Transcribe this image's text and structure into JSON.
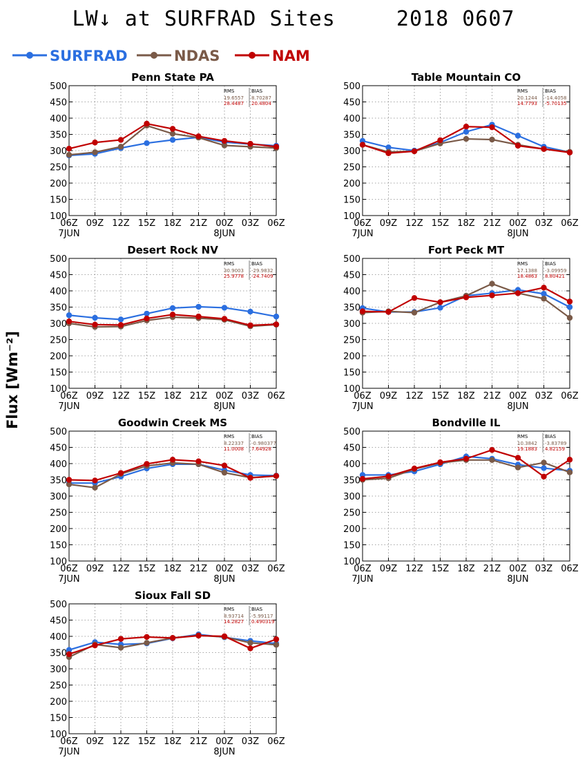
{
  "title_left": "LW↓ at SURFRAD Sites",
  "title_right": "2018 0607",
  "y_axis_label": "Flux [Wm⁻²]",
  "legend": [
    {
      "name": "SURFRAD",
      "color": "#2b6fe0"
    },
    {
      "name": "NDAS",
      "color": "#7a5a48"
    },
    {
      "name": "NAM",
      "color": "#c00000"
    }
  ],
  "stats_headers": {
    "rms": "RMS",
    "bias": "BIAS"
  },
  "chart_data": [
    {
      "type": "line",
      "title": "Penn State PA",
      "x": [
        "06Z",
        "09Z",
        "12Z",
        "15Z",
        "18Z",
        "21Z",
        "00Z",
        "03Z",
        "06Z"
      ],
      "date_labels": [
        "7JUN",
        "8JUN"
      ],
      "ylim": [
        100,
        500
      ],
      "yticks": [
        100,
        150,
        200,
        250,
        300,
        350,
        400,
        450,
        500
      ],
      "grid": true,
      "stats": [
        [
          "19.6557",
          "8.70287"
        ],
        [
          "28.4487",
          "20.4804"
        ]
      ],
      "series": [
        {
          "name": "SURFRAD",
          "values": [
            285,
            290,
            308,
            323,
            333,
            341,
            326,
            320,
            315
          ]
        },
        {
          "name": "NDAS",
          "values": [
            287,
            295,
            312,
            377,
            352,
            340,
            316,
            312,
            308
          ]
        },
        {
          "name": "NAM",
          "values": [
            306,
            325,
            333,
            383,
            367,
            344,
            330,
            321,
            312
          ]
        }
      ]
    },
    {
      "type": "line",
      "title": "Table Mountain CO",
      "x": [
        "06Z",
        "09Z",
        "12Z",
        "15Z",
        "18Z",
        "21Z",
        "00Z",
        "03Z",
        "06Z"
      ],
      "date_labels": [
        "7JUN",
        "8JUN"
      ],
      "ylim": [
        100,
        500
      ],
      "yticks": [
        100,
        150,
        200,
        250,
        300,
        350,
        400,
        450,
        500
      ],
      "grid": true,
      "stats": [
        [
          "20.1244",
          "-14.4058"
        ],
        [
          "14.7793",
          "-5.70135"
        ]
      ],
      "series": [
        {
          "name": "SURFRAD",
          "values": [
            330,
            310,
            300,
            325,
            358,
            380,
            346,
            312,
            295
          ]
        },
        {
          "name": "NDAS",
          "values": [
            318,
            296,
            298,
            322,
            336,
            334,
            318,
            305,
            296
          ]
        },
        {
          "name": "NAM",
          "values": [
            318,
            292,
            298,
            332,
            374,
            372,
            315,
            305,
            294
          ]
        }
      ]
    },
    {
      "type": "line",
      "title": "Desert Rock NV",
      "x": [
        "06Z",
        "09Z",
        "12Z",
        "15Z",
        "18Z",
        "21Z",
        "00Z",
        "03Z",
        "06Z"
      ],
      "date_labels": [
        "7JUN",
        "8JUN"
      ],
      "ylim": [
        100,
        500
      ],
      "yticks": [
        100,
        150,
        200,
        250,
        300,
        350,
        400,
        450,
        500
      ],
      "grid": true,
      "stats": [
        [
          "30.9003",
          "-29.9832"
        ],
        [
          "25.9778",
          "-24.7409"
        ]
      ],
      "series": [
        {
          "name": "SURFRAD",
          "values": [
            325,
            317,
            312,
            330,
            347,
            351,
            348,
            336,
            321
          ]
        },
        {
          "name": "NDAS",
          "values": [
            300,
            289,
            290,
            309,
            319,
            316,
            311,
            291,
            296
          ]
        },
        {
          "name": "NAM",
          "values": [
            306,
            296,
            295,
            315,
            327,
            321,
            314,
            294,
            297
          ]
        }
      ]
    },
    {
      "type": "line",
      "title": "Fort Peck MT",
      "x": [
        "06Z",
        "09Z",
        "12Z",
        "15Z",
        "18Z",
        "21Z",
        "00Z",
        "03Z",
        "06Z"
      ],
      "date_labels": [
        "7JUN",
        "8JUN"
      ],
      "ylim": [
        100,
        500
      ],
      "yticks": [
        100,
        150,
        200,
        250,
        300,
        350,
        400,
        450,
        500
      ],
      "grid": true,
      "stats": [
        [
          "17.1388",
          "-3.09959"
        ],
        [
          "18.4863",
          "8.80421"
        ]
      ],
      "series": [
        {
          "name": "SURFRAD",
          "values": [
            347,
            335,
            335,
            348,
            385,
            393,
            403,
            391,
            350
          ]
        },
        {
          "name": "NDAS",
          "values": [
            333,
            337,
            333,
            365,
            385,
            422,
            393,
            376,
            317
          ]
        },
        {
          "name": "NAM",
          "values": [
            337,
            335,
            378,
            365,
            380,
            386,
            393,
            410,
            367
          ]
        }
      ]
    },
    {
      "type": "line",
      "title": "Goodwin Creek MS",
      "x": [
        "06Z",
        "09Z",
        "12Z",
        "15Z",
        "18Z",
        "21Z",
        "00Z",
        "03Z",
        "06Z"
      ],
      "date_labels": [
        "7JUN",
        "8JUN"
      ],
      "ylim": [
        100,
        500
      ],
      "yticks": [
        100,
        150,
        200,
        250,
        300,
        350,
        400,
        450,
        500
      ],
      "grid": true,
      "stats": [
        [
          "8.22337",
          "-0.980377"
        ],
        [
          "11.0008",
          "7.64928"
        ]
      ],
      "series": [
        {
          "name": "SURFRAD",
          "values": [
            340,
            340,
            360,
            385,
            398,
            398,
            380,
            365,
            363
          ]
        },
        {
          "name": "NDAS",
          "values": [
            336,
            326,
            368,
            393,
            402,
            398,
            372,
            357,
            362
          ]
        },
        {
          "name": "NAM",
          "values": [
            350,
            348,
            371,
            399,
            412,
            407,
            394,
            356,
            362
          ]
        }
      ]
    },
    {
      "type": "line",
      "title": "Bondville IL",
      "x": [
        "06Z",
        "09Z",
        "12Z",
        "15Z",
        "18Z",
        "21Z",
        "00Z",
        "03Z",
        "06Z"
      ],
      "date_labels": [
        "7JUN",
        "8JUN"
      ],
      "ylim": [
        100,
        500
      ],
      "yticks": [
        100,
        150,
        200,
        250,
        300,
        350,
        400,
        450,
        500
      ],
      "grid": true,
      "stats": [
        [
          "10.3842",
          "-3.83789"
        ],
        [
          "19.1883",
          "4.82159"
        ]
      ],
      "series": [
        {
          "name": "SURFRAD",
          "values": [
            365,
            365,
            376,
            398,
            422,
            415,
            397,
            386,
            378
          ]
        },
        {
          "name": "NDAS",
          "values": [
            350,
            355,
            383,
            402,
            411,
            411,
            388,
            403,
            373
          ]
        },
        {
          "name": "NAM",
          "values": [
            353,
            361,
            385,
            404,
            415,
            442,
            418,
            360,
            412
          ]
        }
      ]
    },
    {
      "type": "line",
      "title": "Sioux Fall SD",
      "x": [
        "06Z",
        "09Z",
        "12Z",
        "15Z",
        "18Z",
        "21Z",
        "00Z",
        "03Z",
        "06Z"
      ],
      "date_labels": [
        "7JUN",
        "8JUN"
      ],
      "ylim": [
        100,
        500
      ],
      "yticks": [
        100,
        150,
        200,
        250,
        300,
        350,
        400,
        450,
        500
      ],
      "grid": true,
      "stats": [
        [
          "8.93714",
          "-5.99117"
        ],
        [
          "14.2827",
          "0.490319"
        ]
      ],
      "series": [
        {
          "name": "SURFRAD",
          "values": [
            358,
            382,
            375,
            378,
            394,
            406,
            397,
            386,
            378
          ]
        },
        {
          "name": "NDAS",
          "values": [
            336,
            375,
            365,
            380,
            395,
            403,
            398,
            380,
            374
          ]
        },
        {
          "name": "NAM",
          "values": [
            345,
            372,
            392,
            398,
            395,
            402,
            400,
            363,
            391
          ]
        }
      ]
    }
  ]
}
